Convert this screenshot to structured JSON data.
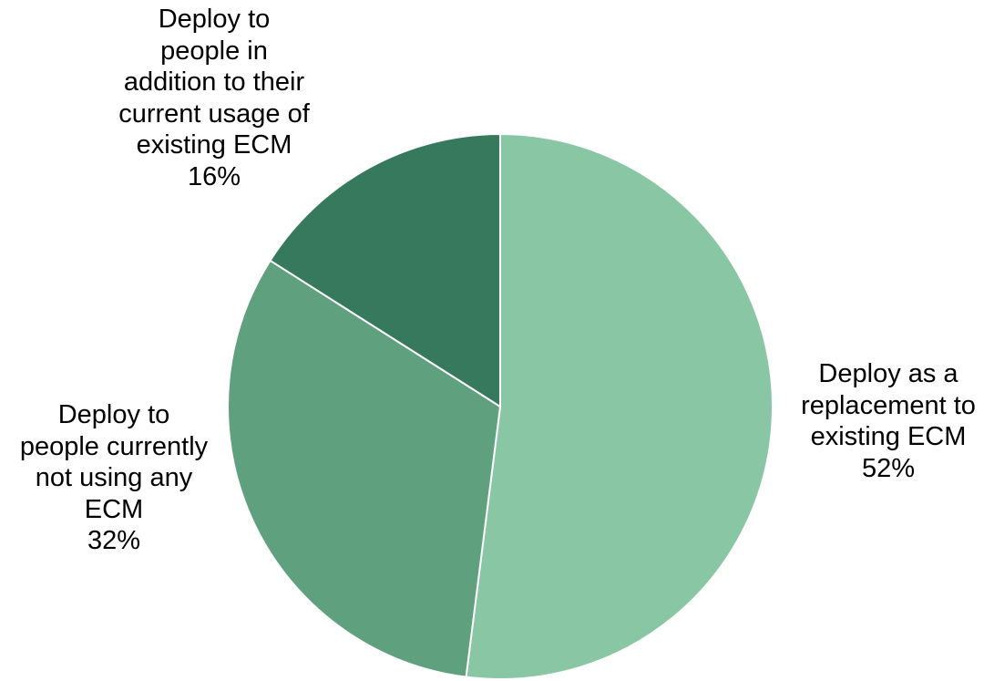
{
  "chart_data": {
    "type": "pie",
    "title": "",
    "start_angle_deg": 0,
    "direction": "clockwise",
    "slices": [
      {
        "label": "Deploy as a replacement to existing ECM",
        "label_lines": [
          "Deploy as a",
          "replacement to",
          "existing ECM",
          "52%"
        ],
        "value": 52,
        "percent_label": "52%",
        "color": "#89c7a4"
      },
      {
        "label": "Deploy to people currently not using any ECM",
        "label_lines": [
          "Deploy to",
          "people currently",
          "not using any",
          "ECM",
          "32%"
        ],
        "value": 32,
        "percent_label": "32%",
        "color": "#5fa07e"
      },
      {
        "label": "Deploy to people in addition to their current usage of existing ECM",
        "label_lines": [
          "Deploy to",
          "people in",
          "addition to their",
          "current usage of",
          "existing ECM",
          "16%"
        ],
        "value": 16,
        "percent_label": "16%",
        "color": "#36795d"
      }
    ],
    "legend": "none",
    "grid": false
  }
}
